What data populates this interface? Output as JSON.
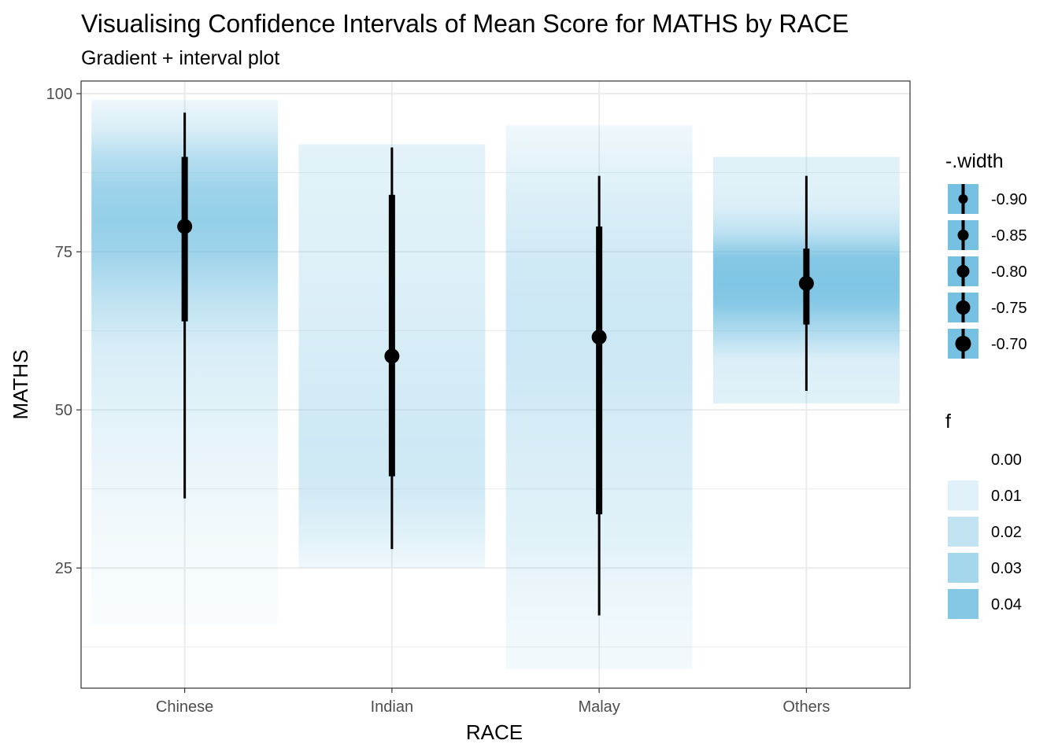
{
  "chart_data": {
    "type": "gradient-interval",
    "title": "Visualising Confidence Intervals of Mean Score for MATHS by RACE",
    "subtitle": "Gradient + interval plot",
    "xlabel": "RACE",
    "ylabel": "MATHS",
    "ylim": [
      6,
      102
    ],
    "yticks": [
      "25",
      "50",
      "75",
      "100"
    ],
    "grid": true,
    "fill_color": "#76c1e2",
    "max_density": 0.045,
    "categories": [
      "Chinese",
      "Indian",
      "Malay",
      "Others"
    ],
    "series": [
      {
        "category": "Chinese",
        "mean": 79,
        "interval_outer": [
          36,
          97
        ],
        "interval_inner": [
          64,
          90
        ],
        "density_range": [
          16,
          99
        ],
        "density_stops": [
          [
            16,
            0.002
          ],
          [
            30,
            0.004
          ],
          [
            45,
            0.008
          ],
          [
            60,
            0.013
          ],
          [
            68,
            0.022
          ],
          [
            75,
            0.032
          ],
          [
            80,
            0.035
          ],
          [
            85,
            0.032
          ],
          [
            90,
            0.024
          ],
          [
            94,
            0.013
          ],
          [
            99,
            0.006
          ]
        ]
      },
      {
        "category": "Indian",
        "mean": 58.5,
        "interval_outer": [
          28,
          91.5
        ],
        "interval_inner": [
          39.5,
          84
        ],
        "density_range": [
          25,
          92
        ],
        "density_stops": [
          [
            25,
            0.005
          ],
          [
            30,
            0.01
          ],
          [
            37,
            0.015
          ],
          [
            45,
            0.016
          ],
          [
            55,
            0.014
          ],
          [
            65,
            0.012
          ],
          [
            75,
            0.011
          ],
          [
            85,
            0.01
          ],
          [
            92,
            0.009
          ]
        ]
      },
      {
        "category": "Malay",
        "mean": 61.5,
        "interval_outer": [
          17.5,
          87
        ],
        "interval_inner": [
          33.5,
          79
        ],
        "density_range": [
          9,
          95
        ],
        "density_stops": [
          [
            9,
            0.004
          ],
          [
            20,
            0.006
          ],
          [
            30,
            0.01
          ],
          [
            45,
            0.013
          ],
          [
            55,
            0.016
          ],
          [
            65,
            0.017
          ],
          [
            75,
            0.015
          ],
          [
            85,
            0.011
          ],
          [
            95,
            0.005
          ]
        ]
      },
      {
        "category": "Others",
        "mean": 70,
        "interval_outer": [
          53,
          87
        ],
        "interval_inner": [
          63.5,
          75.5
        ],
        "density_range": [
          51,
          90
        ],
        "density_stops": [
          [
            51,
            0.01
          ],
          [
            58,
            0.012
          ],
          [
            62,
            0.025
          ],
          [
            67,
            0.04
          ],
          [
            70,
            0.042
          ],
          [
            74,
            0.04
          ],
          [
            78,
            0.022
          ],
          [
            82,
            0.012
          ],
          [
            86,
            0.01
          ],
          [
            90,
            0.01
          ]
        ]
      }
    ],
    "legends": [
      {
        "title": "-.width",
        "placement": "right-top",
        "type": "interval-key",
        "items": [
          "-0.90",
          "-0.85",
          "-0.80",
          "-0.75",
          "-0.70"
        ],
        "point_sizes": [
          6,
          7,
          8,
          9,
          10
        ]
      },
      {
        "title": "f",
        "placement": "right-middle",
        "type": "fill-key",
        "items": [
          "0.00",
          "0.01",
          "0.02",
          "0.03",
          "0.04"
        ],
        "values": [
          0,
          0.01,
          0.02,
          0.03,
          0.04
        ]
      }
    ]
  }
}
